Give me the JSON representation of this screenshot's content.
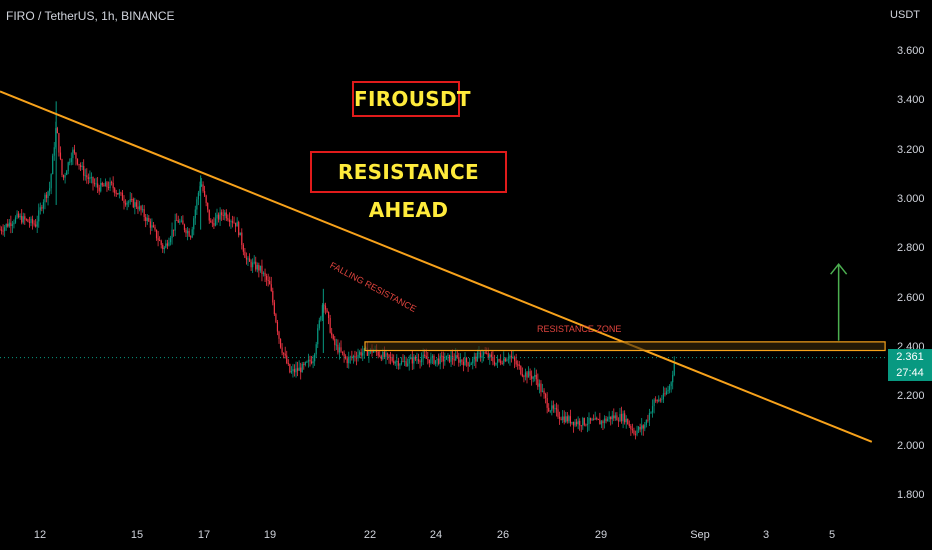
{
  "header": {
    "symbol": "FIRO / TetherUS, 1h, BINANCE",
    "currency": "USDT"
  },
  "annotations": {
    "title": "FIROUSDT",
    "subtitle": "RESISTANCE AHEAD",
    "falling_resistance": "FALLING RESISTANCE",
    "resistance_zone": "RESISTANCE ZONE"
  },
  "price_badge": {
    "price": "2.361",
    "countdown": "27:44"
  },
  "colors": {
    "background": "#000000",
    "up_candle": "#089981",
    "down_candle": "#f23645",
    "trendline": "#f7a21b",
    "zone_border": "#f7a21b",
    "target_arrow": "#4caf50",
    "title_text": "#ffeb3b",
    "title_border": "#e01b1b"
  },
  "chart_data": {
    "type": "candlestick",
    "title": "",
    "xlabel": "",
    "ylabel": "",
    "ylim": [
      1.7,
      3.75
    ],
    "y_ticks": [
      "3.600",
      "3.400",
      "3.200",
      "3.000",
      "2.800",
      "2.600",
      "2.400",
      "2.200",
      "2.000",
      "1.800"
    ],
    "x_ticks": [
      {
        "label": "12",
        "day": 12
      },
      {
        "label": "15",
        "day": 15
      },
      {
        "label": "17",
        "day": 17
      },
      {
        "label": "19",
        "day": 19
      },
      {
        "label": "22",
        "day": 22
      },
      {
        "label": "24",
        "day": 24
      },
      {
        "label": "26",
        "day": 26
      },
      {
        "label": "29",
        "day": 29
      },
      {
        "label": "Sep",
        "day": 32
      },
      {
        "label": "3",
        "day": 34
      },
      {
        "label": "5",
        "day": 36
      }
    ],
    "xlim_days": [
      11.1,
      38.2
    ],
    "last_price": 2.361,
    "price_path": [
      [
        11.1,
        2.88
      ],
      [
        11.5,
        2.93
      ],
      [
        11.9,
        2.9
      ],
      [
        12.1,
        3.0
      ],
      [
        12.3,
        3.05
      ],
      [
        12.5,
        3.3
      ],
      [
        12.7,
        3.08
      ],
      [
        13.0,
        3.2
      ],
      [
        13.4,
        3.1
      ],
      [
        13.8,
        3.05
      ],
      [
        14.2,
        3.06
      ],
      [
        14.6,
        3.0
      ],
      [
        15.0,
        2.98
      ],
      [
        15.4,
        2.9
      ],
      [
        15.8,
        2.8
      ],
      [
        16.2,
        2.92
      ],
      [
        16.6,
        2.86
      ],
      [
        16.9,
        3.08
      ],
      [
        17.2,
        2.9
      ],
      [
        17.6,
        2.95
      ],
      [
        18.0,
        2.9
      ],
      [
        18.3,
        2.75
      ],
      [
        18.7,
        2.72
      ],
      [
        19.0,
        2.65
      ],
      [
        19.3,
        2.42
      ],
      [
        19.6,
        2.3
      ],
      [
        20.0,
        2.32
      ],
      [
        20.3,
        2.36
      ],
      [
        20.6,
        2.6
      ],
      [
        20.9,
        2.42
      ],
      [
        21.3,
        2.35
      ],
      [
        21.7,
        2.38
      ],
      [
        22.1,
        2.39
      ],
      [
        22.5,
        2.36
      ],
      [
        23.0,
        2.34
      ],
      [
        23.5,
        2.36
      ],
      [
        24.0,
        2.35
      ],
      [
        24.5,
        2.36
      ],
      [
        25.0,
        2.34
      ],
      [
        25.4,
        2.38
      ],
      [
        25.8,
        2.34
      ],
      [
        26.2,
        2.37
      ],
      [
        26.6,
        2.3
      ],
      [
        27.0,
        2.28
      ],
      [
        27.4,
        2.16
      ],
      [
        27.8,
        2.12
      ],
      [
        28.2,
        2.1
      ],
      [
        28.6,
        2.1
      ],
      [
        29.0,
        2.1
      ],
      [
        29.3,
        2.12
      ],
      [
        29.7,
        2.12
      ],
      [
        30.0,
        2.06
      ],
      [
        30.3,
        2.08
      ],
      [
        30.6,
        2.18
      ],
      [
        30.9,
        2.2
      ],
      [
        31.1,
        2.25
      ],
      [
        31.25,
        2.361
      ]
    ],
    "falling_resistance": {
      "from": [
        11.1,
        3.44
      ],
      "to": [
        37.2,
        2.02
      ]
    },
    "resistance_zone": {
      "from_day": 24.0,
      "to_day": 37.6,
      "low": 2.39,
      "high": 2.425
    },
    "target_arrow": {
      "day": 36.2,
      "from_price": 2.43,
      "to_price": 2.74
    }
  }
}
